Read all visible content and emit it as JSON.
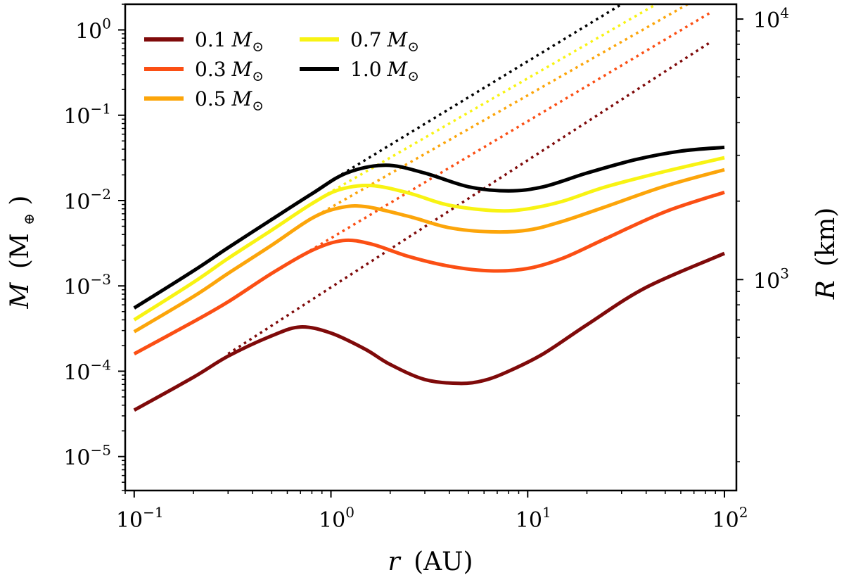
{
  "chart_data": {
    "type": "line",
    "xscale": "log",
    "yscale": "log",
    "xlim": [
      0.09,
      115
    ],
    "ylim": [
      4e-06,
      2.0
    ],
    "right_ylim": [
      155,
      11400
    ],
    "xlabel": {
      "var": "r",
      "unit": "(AU)"
    },
    "ylabel": {
      "var": "M",
      "unit_open": "(M",
      "unit_sub": "⊕",
      "unit_close": ")"
    },
    "right_ylabel": {
      "var": "R",
      "unit": "(km)"
    },
    "x_ticks": [
      {
        "value": 0.1,
        "base": "10",
        "exp": "−1"
      },
      {
        "value": 1,
        "base": "10",
        "exp": "0"
      },
      {
        "value": 10,
        "base": "10",
        "exp": "1"
      },
      {
        "value": 100,
        "base": "10",
        "exp": "2"
      }
    ],
    "y_ticks": [
      {
        "value": 1e-05,
        "base": "10",
        "exp": "−5"
      },
      {
        "value": 0.0001,
        "base": "10",
        "exp": "−4"
      },
      {
        "value": 0.001,
        "base": "10",
        "exp": "−3"
      },
      {
        "value": 0.01,
        "base": "10",
        "exp": "−2"
      },
      {
        "value": 0.1,
        "base": "10",
        "exp": "−1"
      },
      {
        "value": 1,
        "base": "10",
        "exp": "0"
      }
    ],
    "right_ticks": [
      {
        "value": 1000,
        "base": "10",
        "exp": "3"
      },
      {
        "value": 10000,
        "base": "10",
        "exp": "4"
      }
    ],
    "legend": {
      "location": "top-left",
      "columns": 2
    },
    "series": [
      {
        "name": "0.1 M⊙",
        "label_num": "0.1",
        "label_unit": "M",
        "label_sub": "⊙",
        "color": "#7f0a0a",
        "solid": {
          "x": [
            0.1,
            0.2,
            0.3,
            0.5,
            0.7,
            1.0,
            1.5,
            2.0,
            3.0,
            4.5,
            6.0,
            8.0,
            12,
            20,
            40,
            100
          ],
          "y": [
            3.5e-05,
            8.5e-05,
            0.00015,
            0.00026,
            0.00033,
            0.00028,
            0.00018,
            0.00012,
            8e-05,
            7.2e-05,
            7.8e-05,
            0.0001,
            0.00016,
            0.00035,
            0.00096,
            0.0024
          ]
        },
        "dotted": {
          "x": [
            0.3,
            85
          ],
          "y": [
            0.00016,
            0.72
          ]
        }
      },
      {
        "name": "0.3 M⊙",
        "label_num": "0.3",
        "label_unit": "M",
        "label_sub": "⊙",
        "color": "#fb4f14",
        "solid": {
          "x": [
            0.1,
            0.2,
            0.3,
            0.5,
            0.8,
            1.15,
            1.6,
            2.5,
            4.0,
            6.5,
            10,
            15,
            25,
            50,
            100
          ],
          "y": [
            0.00016,
            0.00038,
            0.00065,
            0.0014,
            0.0026,
            0.0034,
            0.0031,
            0.0022,
            0.0017,
            0.0015,
            0.0016,
            0.0021,
            0.0036,
            0.0074,
            0.0125
          ]
        },
        "dotted": {
          "x": [
            0.5,
            85
          ],
          "y": [
            0.0014,
            1.6
          ]
        }
      },
      {
        "name": "0.5 M⊙",
        "label_num": "0.5",
        "label_unit": "M",
        "label_sub": "⊙",
        "color": "#fca50a",
        "solid": {
          "x": [
            0.1,
            0.2,
            0.3,
            0.5,
            0.8,
            1.1,
            1.5,
            2.5,
            4.0,
            6.5,
            10,
            15,
            25,
            50,
            100
          ],
          "y": [
            0.00029,
            0.00075,
            0.0014,
            0.003,
            0.0062,
            0.0082,
            0.0085,
            0.0065,
            0.0048,
            0.0043,
            0.0045,
            0.0057,
            0.0085,
            0.0148,
            0.023
          ]
        },
        "dotted": {
          "x": [
            0.7,
            65
          ],
          "y": [
            0.0052,
            2.0
          ]
        }
      },
      {
        "name": "0.7 M⊙",
        "label_num": "0.7",
        "label_unit": "M",
        "label_sub": "⊙",
        "color": "#f8f313",
        "solid": {
          "x": [
            0.1,
            0.2,
            0.3,
            0.5,
            0.8,
            1.1,
            1.6,
            2.5,
            4.0,
            7.0,
            10,
            15,
            25,
            50,
            100
          ],
          "y": [
            0.0004,
            0.0011,
            0.0021,
            0.0045,
            0.0092,
            0.0134,
            0.015,
            0.0122,
            0.0088,
            0.0076,
            0.008,
            0.0098,
            0.0145,
            0.022,
            0.0318
          ]
        },
        "dotted": {
          "x": [
            0.9,
            45
          ],
          "y": [
            0.011,
            2.0
          ]
        }
      },
      {
        "name": "1.0 M⊙",
        "label_num": "1.0",
        "label_unit": "M",
        "label_sub": "⊙",
        "color": "#000000",
        "solid": {
          "x": [
            0.1,
            0.2,
            0.3,
            0.5,
            0.8,
            1.2,
            1.9,
            3.0,
            5.0,
            8.0,
            12,
            20,
            35,
            60,
            100
          ],
          "y": [
            0.00055,
            0.0015,
            0.0028,
            0.006,
            0.012,
            0.021,
            0.026,
            0.021,
            0.0145,
            0.013,
            0.0145,
            0.021,
            0.03,
            0.038,
            0.042
          ]
        },
        "dotted": {
          "x": [
            1.0,
            30
          ],
          "y": [
            0.017,
            2.0
          ]
        }
      }
    ]
  }
}
